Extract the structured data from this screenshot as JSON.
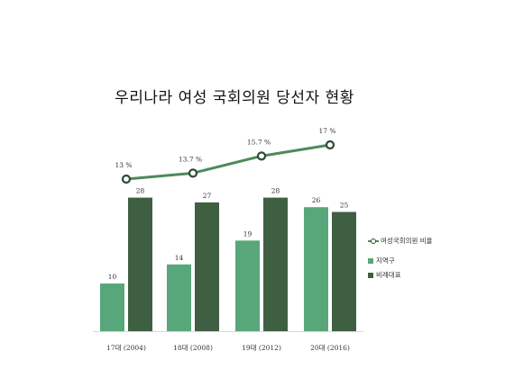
{
  "chart_data": {
    "type": "bar",
    "title": "우리나라 여성 국회의원 당선자 현황",
    "categories": [
      "17대 (2004)",
      "18대 (2008)",
      "19대 (2012)",
      "20대 (2016)"
    ],
    "series": [
      {
        "name": "지역구",
        "kind": "bar",
        "values": [
          10,
          14,
          19,
          26
        ],
        "value_labels": [
          "10",
          "14",
          "19",
          "26"
        ],
        "color": "#58a77a"
      },
      {
        "name": "비례대표",
        "kind": "bar",
        "values": [
          28,
          27,
          28,
          25
        ],
        "value_labels": [
          "28",
          "27",
          "28",
          "25"
        ],
        "color": "#3f5f42"
      },
      {
        "name": "여성국회의원 비율",
        "kind": "line",
        "values": [
          13,
          13.7,
          15.7,
          17
        ],
        "value_labels": [
          "13 %",
          "13.7 %",
          "15.7 %",
          "17 %"
        ],
        "color": "#4e8a5a"
      }
    ],
    "grid": false,
    "legend_position": "right"
  }
}
